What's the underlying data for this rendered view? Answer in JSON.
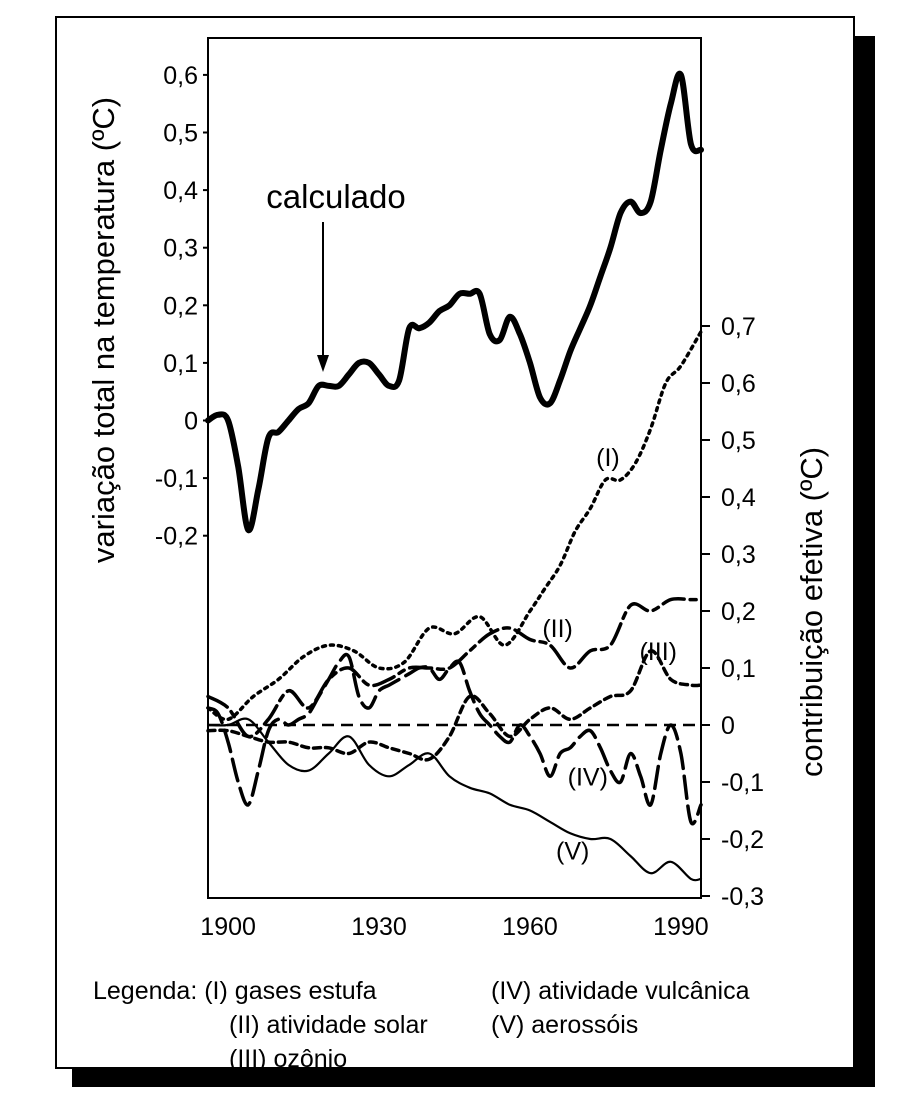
{
  "chart_data": {
    "type": "line",
    "xlabel": "",
    "ylabel_left": "variação total na temperatura (ºC)",
    "ylabel_right": "contribuição efetiva (ºC)",
    "x_ticks": [
      1900,
      1930,
      1960,
      1990
    ],
    "xlim": [
      1896,
      1994
    ],
    "left_axis": {
      "ylim": [
        -0.3,
        0.7
      ],
      "ticks": [
        "0,6",
        "0,5",
        "0,4",
        "0,3",
        "0,2",
        "0,1",
        "0",
        "-0,1",
        "-0,2"
      ],
      "tick_values": [
        0.6,
        0.5,
        0.4,
        0.3,
        0.2,
        0.1,
        0,
        -0.1,
        -0.2
      ]
    },
    "right_axis": {
      "ylim": [
        -0.3,
        0.7
      ],
      "ticks": [
        "0,7",
        "0,6",
        "0,5",
        "0,4",
        "0,3",
        "0,2",
        "0,1",
        "0",
        "-0,1",
        "-0,2",
        "-0,3"
      ],
      "tick_values": [
        0.7,
        0.6,
        0.5,
        0.4,
        0.3,
        0.2,
        0.1,
        0,
        -0.1,
        -0.2,
        -0.3
      ]
    },
    "annotation": {
      "text": "calculado",
      "x": 1918,
      "y": 0.06
    },
    "series": [
      {
        "label": "calculado",
        "axis": "left",
        "style": "thick",
        "x": [
          1896,
          1898,
          1900,
          1902,
          1904,
          1906,
          1908,
          1910,
          1912,
          1914,
          1916,
          1918,
          1920,
          1922,
          1924,
          1926,
          1928,
          1930,
          1932,
          1934,
          1936,
          1938,
          1940,
          1942,
          1944,
          1946,
          1948,
          1950,
          1952,
          1954,
          1956,
          1958,
          1960,
          1962,
          1964,
          1966,
          1968,
          1970,
          1972,
          1974,
          1976,
          1978,
          1980,
          1982,
          1984,
          1986,
          1988,
          1990,
          1992,
          1994
        ],
        "y": [
          0.0,
          0.01,
          0.0,
          -0.08,
          -0.19,
          -0.12,
          -0.03,
          -0.02,
          0.0,
          0.02,
          0.03,
          0.06,
          0.06,
          0.06,
          0.08,
          0.1,
          0.1,
          0.08,
          0.06,
          0.07,
          0.16,
          0.16,
          0.17,
          0.19,
          0.2,
          0.22,
          0.22,
          0.22,
          0.15,
          0.14,
          0.18,
          0.15,
          0.1,
          0.04,
          0.03,
          0.07,
          0.12,
          0.16,
          0.2,
          0.25,
          0.3,
          0.36,
          0.38,
          0.36,
          0.38,
          0.47,
          0.55,
          0.6,
          0.48,
          0.47
        ]
      },
      {
        "label": "(I)",
        "name": "gases estufa",
        "axis": "right",
        "style": "dotted",
        "x": [
          1896,
          1900,
          1905,
          1910,
          1915,
          1920,
          1925,
          1930,
          1935,
          1940,
          1945,
          1950,
          1955,
          1960,
          1963,
          1966,
          1969,
          1972,
          1975,
          1978,
          1981,
          1984,
          1987,
          1990,
          1994
        ],
        "y": [
          0.03,
          0.01,
          0.05,
          0.08,
          0.12,
          0.14,
          0.13,
          0.1,
          0.11,
          0.17,
          0.16,
          0.19,
          0.14,
          0.2,
          0.24,
          0.28,
          0.34,
          0.38,
          0.43,
          0.43,
          0.46,
          0.52,
          0.6,
          0.63,
          0.69
        ]
      },
      {
        "label": "(II)",
        "name": "atividade solar",
        "axis": "right",
        "style": "long-short-dash",
        "x": [
          1896,
          1900,
          1904,
          1908,
          1912,
          1916,
          1920,
          1924,
          1928,
          1932,
          1936,
          1940,
          1944,
          1948,
          1952,
          1956,
          1960,
          1964,
          1968,
          1972,
          1976,
          1980,
          1984,
          1988,
          1992,
          1994
        ],
        "y": [
          0.05,
          0.03,
          -0.02,
          0.01,
          0.06,
          0.03,
          0.08,
          0.1,
          0.07,
          0.08,
          0.1,
          0.1,
          0.1,
          0.13,
          0.16,
          0.17,
          0.15,
          0.14,
          0.1,
          0.13,
          0.14,
          0.21,
          0.2,
          0.22,
          0.22,
          0.22
        ]
      },
      {
        "label": "(III)",
        "name": "ozônio",
        "axis": "right",
        "style": "short-dash",
        "x": [
          1896,
          1900,
          1904,
          1908,
          1912,
          1916,
          1920,
          1924,
          1928,
          1932,
          1936,
          1940,
          1944,
          1948,
          1952,
          1956,
          1960,
          1964,
          1968,
          1972,
          1976,
          1980,
          1984,
          1988,
          1992,
          1994
        ],
        "y": [
          -0.01,
          -0.01,
          -0.02,
          -0.03,
          -0.03,
          -0.04,
          -0.04,
          -0.05,
          -0.03,
          -0.04,
          -0.05,
          -0.06,
          -0.02,
          0.05,
          0.02,
          -0.02,
          0.01,
          0.03,
          0.01,
          0.03,
          0.05,
          0.06,
          0.13,
          0.08,
          0.07,
          0.07
        ]
      },
      {
        "label": "(IV)",
        "name": "atividade vulcânica",
        "axis": "right",
        "style": "long-dash",
        "x": [
          1896,
          1898,
          1900,
          1902,
          1904,
          1906,
          1908,
          1910,
          1912,
          1914,
          1916,
          1918,
          1920,
          1922,
          1924,
          1926,
          1928,
          1930,
          1932,
          1934,
          1936,
          1938,
          1940,
          1942,
          1944,
          1946,
          1948,
          1950,
          1952,
          1954,
          1956,
          1958,
          1960,
          1962,
          1964,
          1966,
          1968,
          1970,
          1972,
          1974,
          1976,
          1978,
          1980,
          1982,
          1984,
          1986,
          1988,
          1990,
          1992,
          1994
        ],
        "y": [
          0.03,
          0.02,
          -0.03,
          -0.1,
          -0.14,
          -0.08,
          -0.01,
          0.01,
          0.0,
          0.01,
          0.02,
          0.05,
          0.08,
          0.11,
          0.12,
          0.05,
          0.03,
          0.06,
          0.07,
          0.08,
          0.09,
          0.1,
          0.1,
          0.08,
          0.1,
          0.11,
          0.06,
          0.02,
          0.0,
          -0.02,
          -0.03,
          0.0,
          -0.02,
          -0.05,
          -0.09,
          -0.05,
          -0.04,
          -0.02,
          -0.01,
          -0.04,
          -0.08,
          -0.1,
          -0.05,
          -0.09,
          -0.14,
          -0.05,
          0.0,
          -0.05,
          -0.17,
          -0.14
        ]
      },
      {
        "label": "(V)",
        "name": "aerossóis",
        "axis": "right",
        "style": "solid-thin",
        "x": [
          1896,
          1900,
          1904,
          1908,
          1912,
          1916,
          1920,
          1924,
          1928,
          1932,
          1936,
          1940,
          1944,
          1948,
          1952,
          1956,
          1960,
          1964,
          1968,
          1972,
          1976,
          1980,
          1984,
          1988,
          1992,
          1994
        ],
        "y": [
          0.0,
          0.0,
          0.01,
          -0.03,
          -0.07,
          -0.08,
          -0.05,
          -0.02,
          -0.07,
          -0.09,
          -0.07,
          -0.05,
          -0.09,
          -0.11,
          -0.12,
          -0.14,
          -0.15,
          -0.17,
          -0.19,
          -0.2,
          -0.2,
          -0.23,
          -0.26,
          -0.24,
          -0.27,
          -0.27
        ]
      }
    ],
    "zero_reference": {
      "axis": "right",
      "value": 0,
      "style": "dashed"
    },
    "series_label_positions": [
      {
        "text": "(I)",
        "x": 1975.5,
        "y": 0.47
      },
      {
        "text": "(II)",
        "x": 1965.5,
        "y": 0.17
      },
      {
        "text": "(III)",
        "x": 1985.5,
        "y": 0.13
      },
      {
        "text": "(IV)",
        "x": 1971.5,
        "y": -0.09
      },
      {
        "text": "(V)",
        "x": 1968.5,
        "y": -0.22
      }
    ]
  },
  "legend": {
    "title": "Legenda:",
    "items": [
      {
        "key": "(I)",
        "text": "gases estufa"
      },
      {
        "key": "(II)",
        "text": "atividade solar"
      },
      {
        "key": "(III)",
        "text": "ozônio"
      },
      {
        "key": "(IV)",
        "text": "atividade vulcânica"
      },
      {
        "key": "(V)",
        "text": "aerossóis"
      }
    ]
  }
}
